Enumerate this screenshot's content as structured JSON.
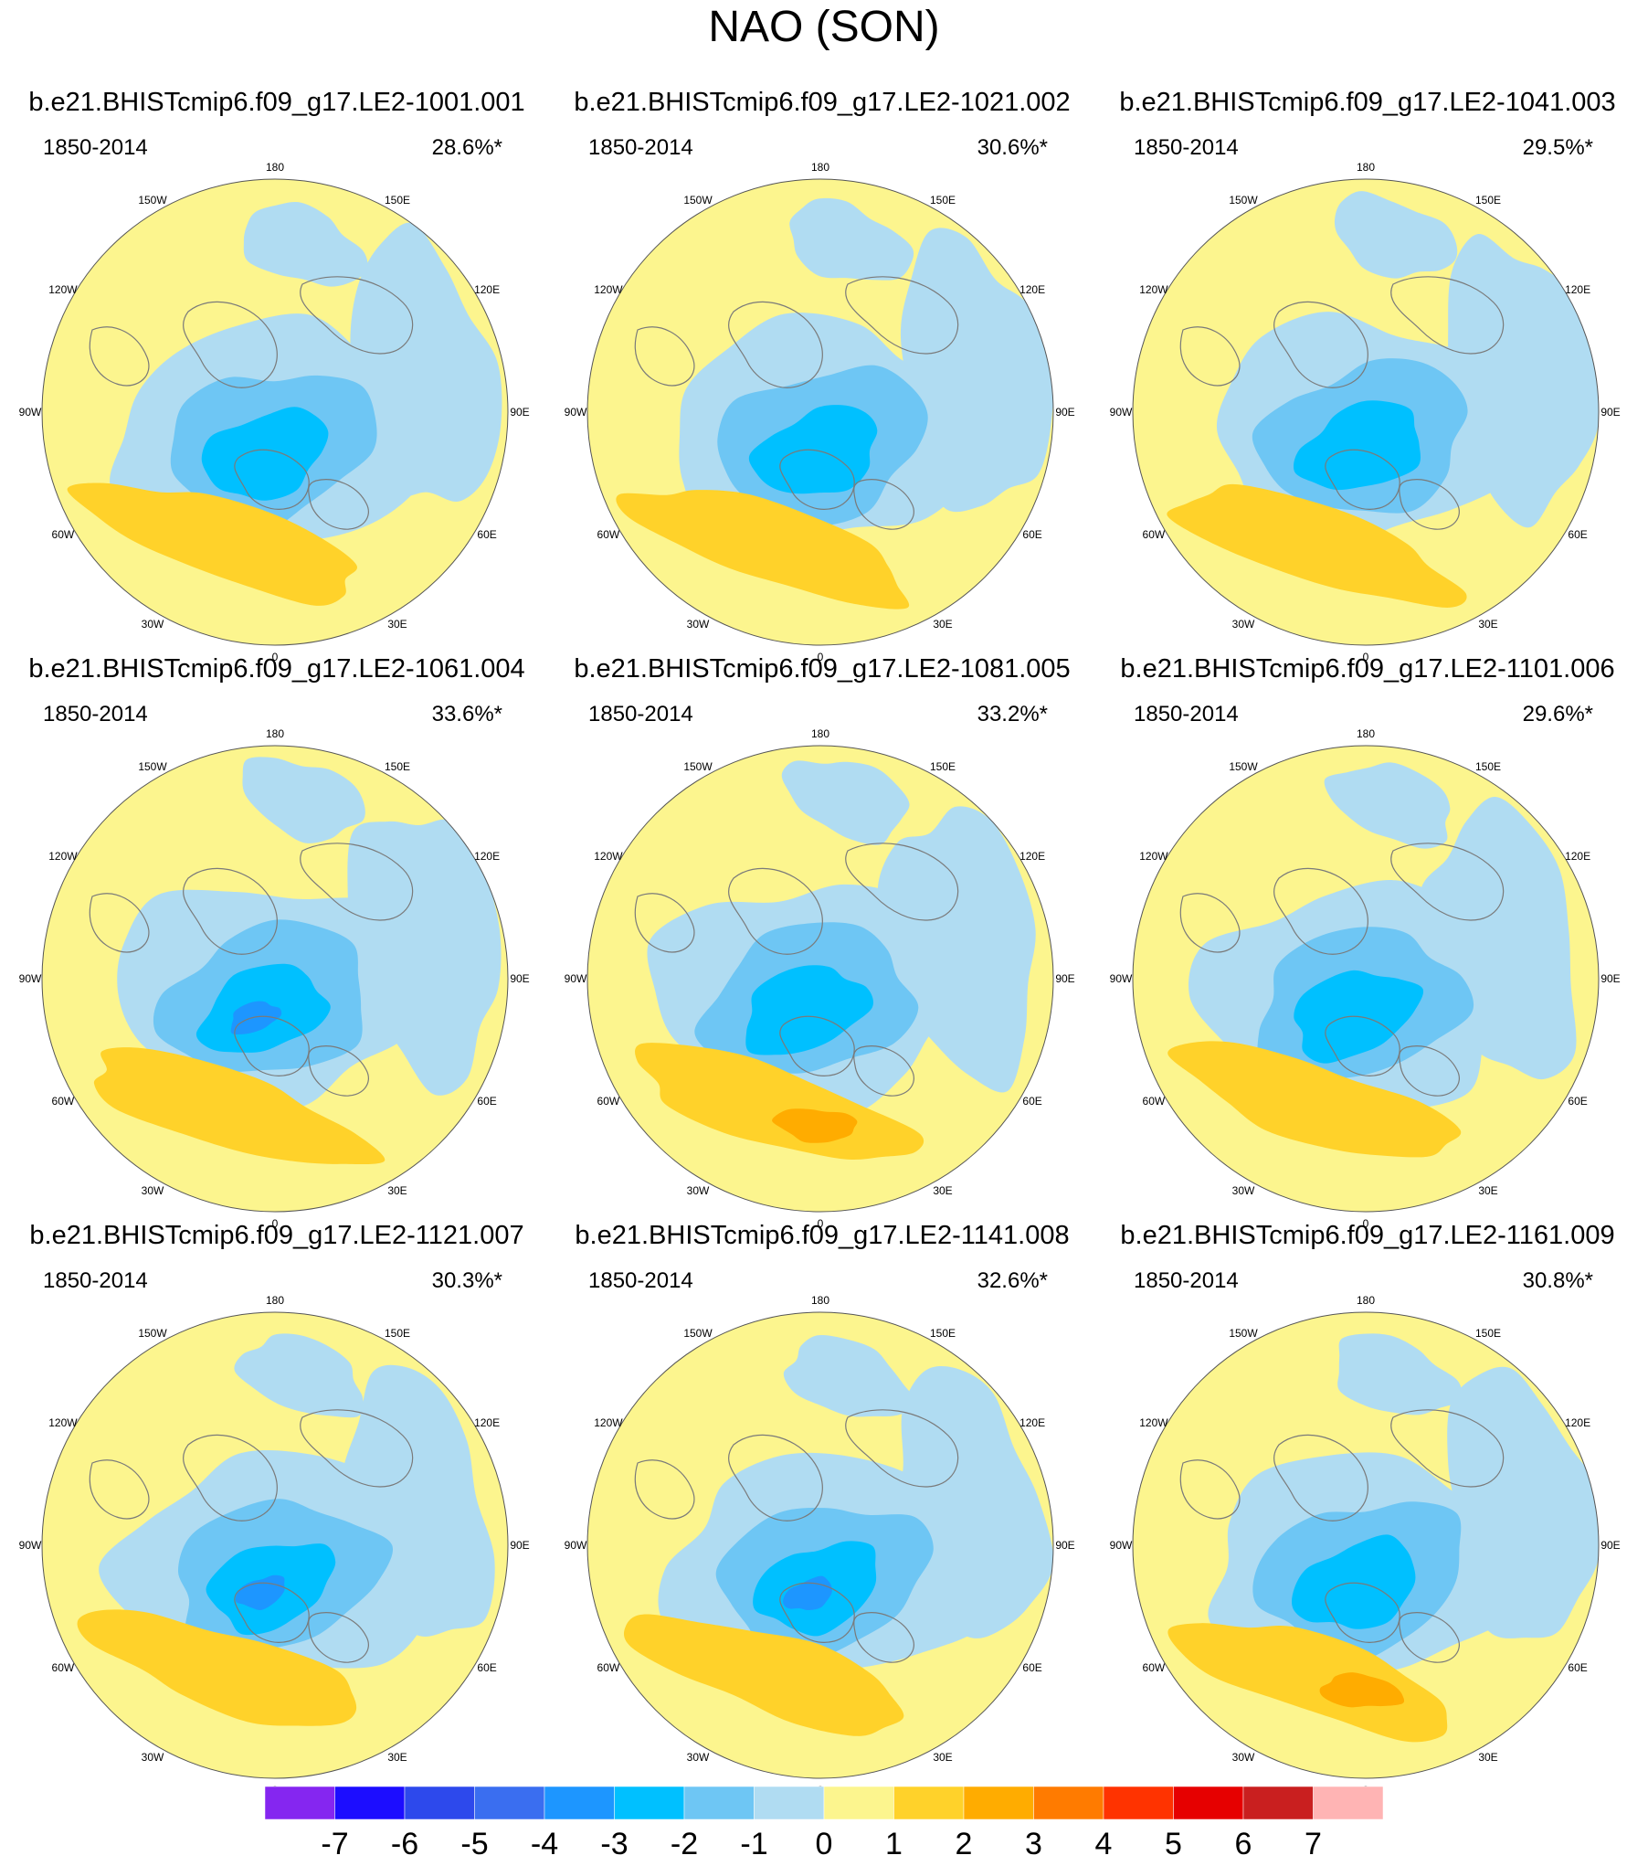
{
  "title": "NAO (SON)",
  "chart_data": {
    "type": "polar-contour-map",
    "title": "NAO (SON)",
    "projection": "north-polar-stereographic",
    "lon_labels": [
      "180",
      "150E",
      "120E",
      "90E",
      "60E",
      "30E",
      "0",
      "30W",
      "60W",
      "90W",
      "120W",
      "150W"
    ],
    "panels": [
      {
        "name": "b.e21.BHISTcmip6.f09_g17.LE2-1001.001",
        "period": "1850-2014",
        "variance": "28.6%*",
        "min": -3,
        "max": 2
      },
      {
        "name": "b.e21.BHISTcmip6.f09_g17.LE2-1021.002",
        "period": "1850-2014",
        "variance": "30.6%*",
        "min": -3,
        "max": 2
      },
      {
        "name": "b.e21.BHISTcmip6.f09_g17.LE2-1041.003",
        "period": "1850-2014",
        "variance": "29.5%*",
        "min": -3,
        "max": 2
      },
      {
        "name": "b.e21.BHISTcmip6.f09_g17.LE2-1061.004",
        "period": "1850-2014",
        "variance": "33.6%*",
        "min": -4,
        "max": 2
      },
      {
        "name": "b.e21.BHISTcmip6.f09_g17.LE2-1081.005",
        "period": "1850-2014",
        "variance": "33.2%*",
        "min": -3,
        "max": 3
      },
      {
        "name": "b.e21.BHISTcmip6.f09_g17.LE2-1101.006",
        "period": "1850-2014",
        "variance": "29.6%*",
        "min": -3,
        "max": 2
      },
      {
        "name": "b.e21.BHISTcmip6.f09_g17.LE2-1121.007",
        "period": "1850-2014",
        "variance": "30.3%*",
        "min": -4,
        "max": 2
      },
      {
        "name": "b.e21.BHISTcmip6.f09_g17.LE2-1141.008",
        "period": "1850-2014",
        "variance": "32.6%*",
        "min": -4,
        "max": 2
      },
      {
        "name": "b.e21.BHISTcmip6.f09_g17.LE2-1161.009",
        "period": "1850-2014",
        "variance": "30.8%*",
        "min": -3,
        "max": 3
      }
    ],
    "colorbar": {
      "levels": [
        "-7",
        "-6",
        "-5",
        "-4",
        "-3",
        "-2",
        "-1",
        "0",
        "1",
        "2",
        "3",
        "4",
        "5",
        "6",
        "7"
      ],
      "colors": [
        "#8526f0",
        "#1c0dff",
        "#2d49ec",
        "#3a6ef0",
        "#1d96ff",
        "#00c0ff",
        "#6ec6f4",
        "#b0dcf2",
        "#fcf58e",
        "#ffd22a",
        "#ffac00",
        "#ff7b00",
        "#ff3300",
        "#e60000",
        "#c91f1f",
        "#ffb4b4"
      ]
    }
  }
}
